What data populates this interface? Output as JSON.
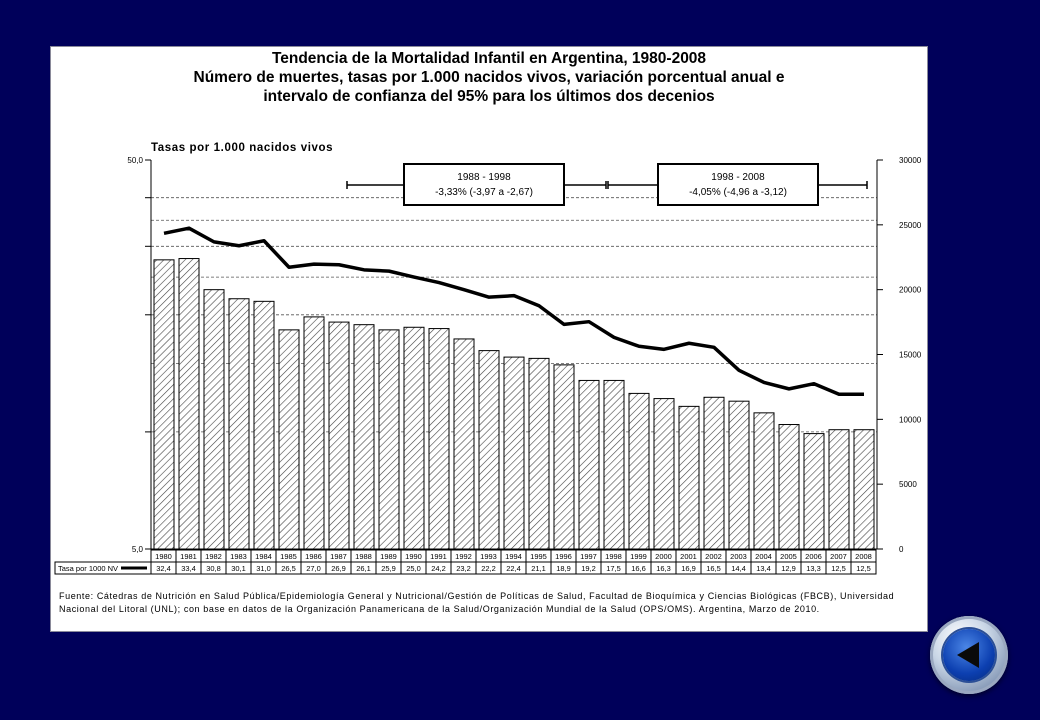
{
  "chart_data": {
    "type": "bar",
    "title": "Tendencia de la Mortalidad Infantil en Argentina, 1980-2008",
    "subtitle_lines": [
      "Número de muertes, tasas por 1.000 nacidos vivos, variación porcentual anual e",
      "intervalo de confianza del 95% para los últimos dos decenios"
    ],
    "ylabel": "Tasas por 1.000 nacidos vivos",
    "left_axis": {
      "scale": "log",
      "ticks": [
        "50,0",
        "5,0"
      ],
      "range": [
        5,
        50
      ]
    },
    "right_axis": {
      "range": [
        0,
        30000
      ],
      "ticks": [
        "30000",
        "25000",
        "20000",
        "15000",
        "10000",
        "5000",
        "0"
      ]
    },
    "categories": [
      "1980",
      "1981",
      "1982",
      "1983",
      "1984",
      "1985",
      "1986",
      "1987",
      "1988",
      "1989",
      "1990",
      "1991",
      "1992",
      "1993",
      "1994",
      "1995",
      "1996",
      "1997",
      "1998",
      "1999",
      "2000",
      "2001",
      "2002",
      "2003",
      "2004",
      "2005",
      "2006",
      "2007",
      "2008"
    ],
    "rate_series": {
      "name": "Tasa por 1000 NV",
      "values": [
        32.4,
        33.4,
        30.8,
        30.1,
        31.0,
        26.5,
        27.0,
        26.9,
        26.1,
        25.9,
        25.0,
        24.2,
        23.2,
        22.2,
        22.4,
        21.1,
        18.9,
        19.2,
        17.5,
        16.6,
        16.3,
        16.9,
        16.5,
        14.4,
        13.4,
        12.9,
        13.3,
        12.5,
        12.5
      ],
      "labels": [
        "32,4",
        "33,4",
        "30,8",
        "30,1",
        "31,0",
        "26,5",
        "27,0",
        "26,9",
        "26,1",
        "25,9",
        "25,0",
        "24,2",
        "23,2",
        "22,2",
        "22,4",
        "21,1",
        "18,9",
        "19,2",
        "17,5",
        "16,6",
        "16,3",
        "16,9",
        "16,5",
        "14,4",
        "13,4",
        "12,9",
        "13,3",
        "12,5",
        "12,5"
      ]
    },
    "death_counts": [
      22300,
      22400,
      20000,
      19300,
      19100,
      16900,
      17900,
      17500,
      17300,
      16900,
      17100,
      17000,
      16200,
      15300,
      14800,
      14700,
      14200,
      13000,
      13000,
      12000,
      11600,
      11000,
      11700,
      11400,
      10500,
      9600,
      8900,
      9200,
      9200
    ],
    "table_header": "Tasa por 1000 NV",
    "annotations": [
      {
        "period": "1988 - 1998",
        "text": "-3,33%   (-3,97 a -2,67)",
        "from": "1988",
        "to": "1998"
      },
      {
        "period": "1998 - 2008",
        "text": "-4,05%   (-4,96 a -3,12)",
        "from": "1998",
        "to": "2008"
      }
    ],
    "grid": true,
    "legend": "bottom-left table"
  },
  "source_text": "Fuente: Cátedras de Nutrición en Salud Pública/Epidemiología General y Nutricional/Gestión de Políticas de Salud, Facultad de Bioquímica y Ciencias Biológicas (FBCB), Universidad Nacional del Litoral (UNL); con base en datos de la Organización Panamericana de la Salud/Organización Mundial de la Salud (OPS/OMS). Argentina, Marzo de 2010.",
  "colors": {
    "background": "#00005a",
    "panel": "#ffffff",
    "line": "#000000",
    "button": "#0c3fb0"
  },
  "nav": {
    "back_icon": "triangle-left-icon"
  }
}
